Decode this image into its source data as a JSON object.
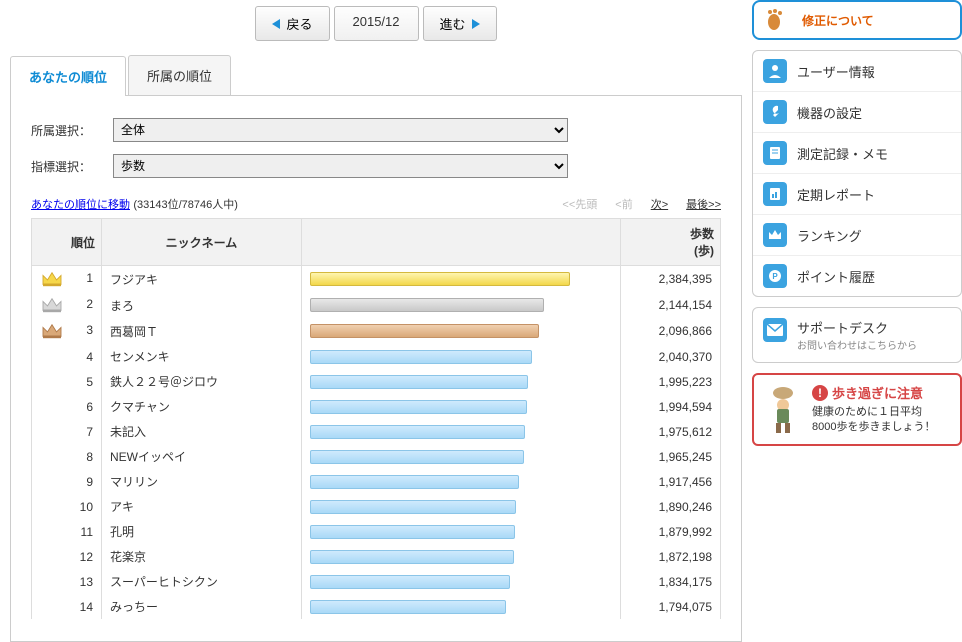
{
  "dateNav": {
    "back": "戻る",
    "date": "2015/12",
    "forward": "進む"
  },
  "tabs": {
    "mine": "あなたの順位",
    "group": "所属の順位"
  },
  "filters": {
    "affiliation": {
      "label": "所属選択：",
      "value": "全体"
    },
    "metric": {
      "label": "指標選択：",
      "value": "歩数"
    }
  },
  "jump": {
    "text": "あなたの順位に移動",
    "counts": "(33143位/78746人中)"
  },
  "pager": {
    "first": "<<先頭",
    "prev": "<前",
    "next": "次>",
    "last": "最後>>"
  },
  "tableHeaders": {
    "rank": "順位",
    "nick": "ニックネーム",
    "steps_line1": "歩数",
    "steps_line2": "(歩)"
  },
  "maxValue": 2384395,
  "rows": [
    {
      "rank": 1,
      "nick": "フジアキ",
      "value": 2384395,
      "display": "2,384,395",
      "style": "gold",
      "crown": "gold"
    },
    {
      "rank": 2,
      "nick": "まろ",
      "value": 2144154,
      "display": "2,144,154",
      "style": "silver",
      "crown": "silver"
    },
    {
      "rank": 3,
      "nick": "西葛岡Ｔ",
      "value": 2096866,
      "display": "2,096,866",
      "style": "bronze",
      "crown": "bronze"
    },
    {
      "rank": 4,
      "nick": "センメンキ",
      "value": 2040370,
      "display": "2,040,370",
      "style": "blue"
    },
    {
      "rank": 5,
      "nick": "鉄人２２号＠ジロウ",
      "value": 1995223,
      "display": "1,995,223",
      "style": "blue"
    },
    {
      "rank": 6,
      "nick": "クマチャン",
      "value": 1994594,
      "display": "1,994,594",
      "style": "blue"
    },
    {
      "rank": 7,
      "nick": "未記入",
      "value": 1975612,
      "display": "1,975,612",
      "style": "blue"
    },
    {
      "rank": 8,
      "nick": "NEWイッペイ",
      "value": 1965245,
      "display": "1,965,245",
      "style": "blue"
    },
    {
      "rank": 9,
      "nick": "マリリン",
      "value": 1917456,
      "display": "1,917,456",
      "style": "blue"
    },
    {
      "rank": 10,
      "nick": "アキ",
      "value": 1890246,
      "display": "1,890,246",
      "style": "blue"
    },
    {
      "rank": 11,
      "nick": "孔明",
      "value": 1879992,
      "display": "1,879,992",
      "style": "blue"
    },
    {
      "rank": 12,
      "nick": "花楽京",
      "value": 1872198,
      "display": "1,872,198",
      "style": "blue"
    },
    {
      "rank": 13,
      "nick": "スーパーヒトシクン",
      "value": 1834175,
      "display": "1,834,175",
      "style": "blue"
    },
    {
      "rank": 14,
      "nick": "みっちー",
      "value": 1794075,
      "display": "1,794,075",
      "style": "blue"
    }
  ],
  "sideBanner": {
    "text": "修正について"
  },
  "sideMenu": [
    {
      "label": "ユーザー情報",
      "icon": "user"
    },
    {
      "label": "機器の設定",
      "icon": "wrench"
    },
    {
      "label": "測定記録・メモ",
      "icon": "note"
    },
    {
      "label": "定期レポート",
      "icon": "report"
    },
    {
      "label": "ランキング",
      "icon": "crown"
    },
    {
      "label": "ポイント履歴",
      "icon": "point"
    }
  ],
  "support": {
    "title": "サポートデスク",
    "sub": "お問い合わせはこちらから"
  },
  "warning": {
    "title": "歩き過ぎに注意",
    "body1": "健康のために１日平均",
    "body2": "8000歩を歩きましょう！"
  },
  "colors": {
    "primary": "#1e90d8",
    "danger": "#d64545"
  }
}
